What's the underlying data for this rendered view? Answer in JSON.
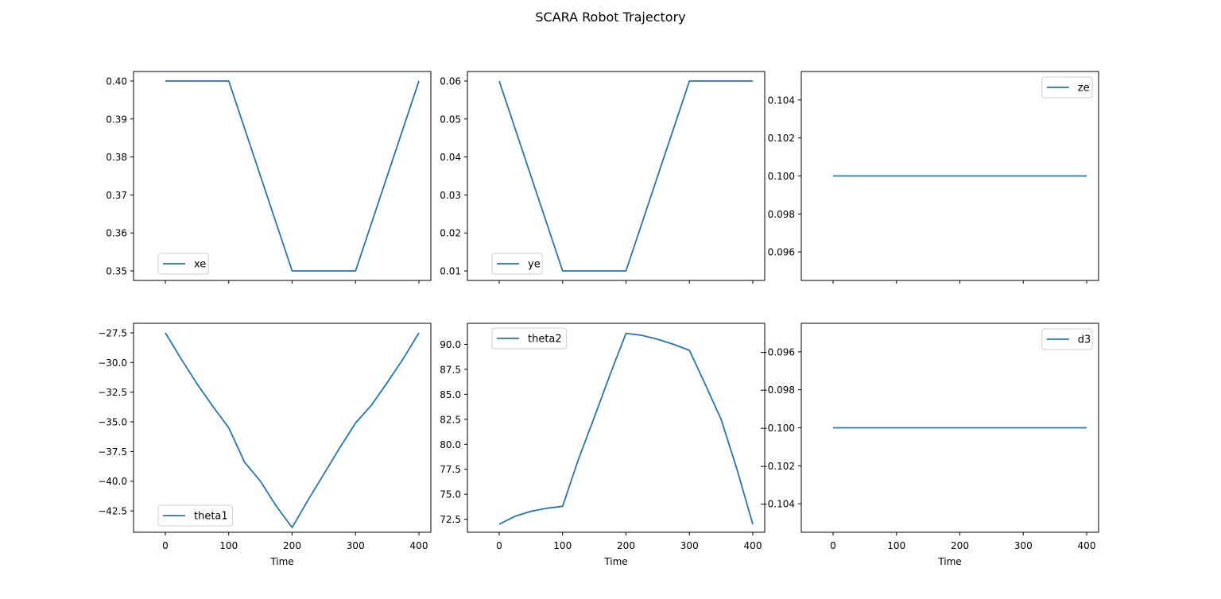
{
  "figure": {
    "title": "SCARA Robot Trajectory"
  },
  "colors": {
    "line": "#1f77b4",
    "axes": "#000000",
    "legend_border": "#cccccc"
  },
  "chart_data": [
    {
      "type": "line",
      "panel": "top-left",
      "xlabel": "",
      "ylabel": "",
      "x_ticks": [
        0,
        100,
        200,
        300,
        400
      ],
      "show_x_tick_labels": false,
      "ylim": [
        0.3475,
        0.4025
      ],
      "y_ticks": [
        "0.35",
        "0.36",
        "0.37",
        "0.38",
        "0.39",
        "0.40"
      ],
      "legend": "lower-left",
      "grid": false,
      "series": [
        {
          "name": "xe",
          "x": [
            0,
            100,
            200,
            300,
            400
          ],
          "y": [
            0.4,
            0.4,
            0.35,
            0.35,
            0.4
          ]
        }
      ]
    },
    {
      "type": "line",
      "panel": "top-middle",
      "xlabel": "",
      "ylabel": "",
      "x_ticks": [
        0,
        100,
        200,
        300,
        400
      ],
      "show_x_tick_labels": false,
      "ylim": [
        0.0075,
        0.0625
      ],
      "y_ticks": [
        "0.01",
        "0.02",
        "0.03",
        "0.04",
        "0.05",
        "0.06"
      ],
      "legend": "lower-left",
      "grid": false,
      "series": [
        {
          "name": "ye",
          "x": [
            0,
            100,
            200,
            300,
            400
          ],
          "y": [
            0.06,
            0.01,
            0.01,
            0.06,
            0.06
          ]
        }
      ]
    },
    {
      "type": "line",
      "panel": "top-right",
      "xlabel": "",
      "ylabel": "",
      "x_ticks": [
        0,
        100,
        200,
        300,
        400
      ],
      "show_x_tick_labels": false,
      "ylim": [
        0.0945,
        0.1055
      ],
      "y_ticks": [
        "0.096",
        "0.098",
        "0.100",
        "0.102",
        "0.104"
      ],
      "legend": "upper-right",
      "grid": false,
      "series": [
        {
          "name": "ze",
          "x": [
            0,
            400
          ],
          "y": [
            0.1,
            0.1
          ]
        }
      ]
    },
    {
      "type": "line",
      "panel": "bottom-left",
      "xlabel": "Time",
      "ylabel": "",
      "x_ticks": [
        0,
        100,
        200,
        300,
        400
      ],
      "show_x_tick_labels": true,
      "ylim": [
        -44.3,
        -26.7
      ],
      "y_ticks": [
        "-42.5",
        "-40.0",
        "-37.5",
        "-35.0",
        "-32.5",
        "-30.0",
        "-27.5"
      ],
      "legend": "lower-left",
      "grid": false,
      "series": [
        {
          "name": "theta1",
          "x": [
            0,
            25,
            50,
            75,
            100,
            125,
            150,
            175,
            200,
            225,
            250,
            275,
            300,
            325,
            350,
            375,
            400
          ],
          "y": [
            -27.5,
            -29.7,
            -31.8,
            -33.7,
            -35.5,
            -38.4,
            -40.0,
            -42.1,
            -43.9,
            -41.6,
            -39.4,
            -37.2,
            -35.1,
            -33.6,
            -31.7,
            -29.7,
            -27.5
          ]
        }
      ]
    },
    {
      "type": "line",
      "panel": "bottom-middle",
      "xlabel": "Time",
      "ylabel": "",
      "x_ticks": [
        0,
        100,
        200,
        300,
        400
      ],
      "show_x_tick_labels": true,
      "ylim": [
        71.2,
        92.1
      ],
      "y_ticks": [
        "72.5",
        "75.0",
        "77.5",
        "80.0",
        "82.5",
        "85.0",
        "87.5",
        "90.0"
      ],
      "legend": "upper-left",
      "grid": false,
      "series": [
        {
          "name": "theta2",
          "x": [
            0,
            25,
            50,
            75,
            100,
            125,
            150,
            175,
            200,
            225,
            250,
            275,
            300,
            325,
            350,
            375,
            400
          ],
          "y": [
            72.0,
            72.8,
            73.3,
            73.6,
            73.8,
            78.5,
            82.7,
            87.0,
            91.1,
            90.9,
            90.5,
            90.0,
            89.4,
            86.0,
            82.5,
            77.5,
            72.0
          ]
        }
      ]
    },
    {
      "type": "line",
      "panel": "bottom-right",
      "xlabel": "Time",
      "ylabel": "",
      "x_ticks": [
        0,
        100,
        200,
        300,
        400
      ],
      "show_x_tick_labels": true,
      "ylim": [
        -0.1055,
        -0.0945
      ],
      "y_ticks": [
        "-0.104",
        "-0.102",
        "-0.100",
        "-0.098",
        "-0.096"
      ],
      "legend": "upper-right",
      "grid": false,
      "series": [
        {
          "name": "d3",
          "x": [
            0,
            400
          ],
          "y": [
            -0.1,
            -0.1
          ]
        }
      ]
    }
  ]
}
